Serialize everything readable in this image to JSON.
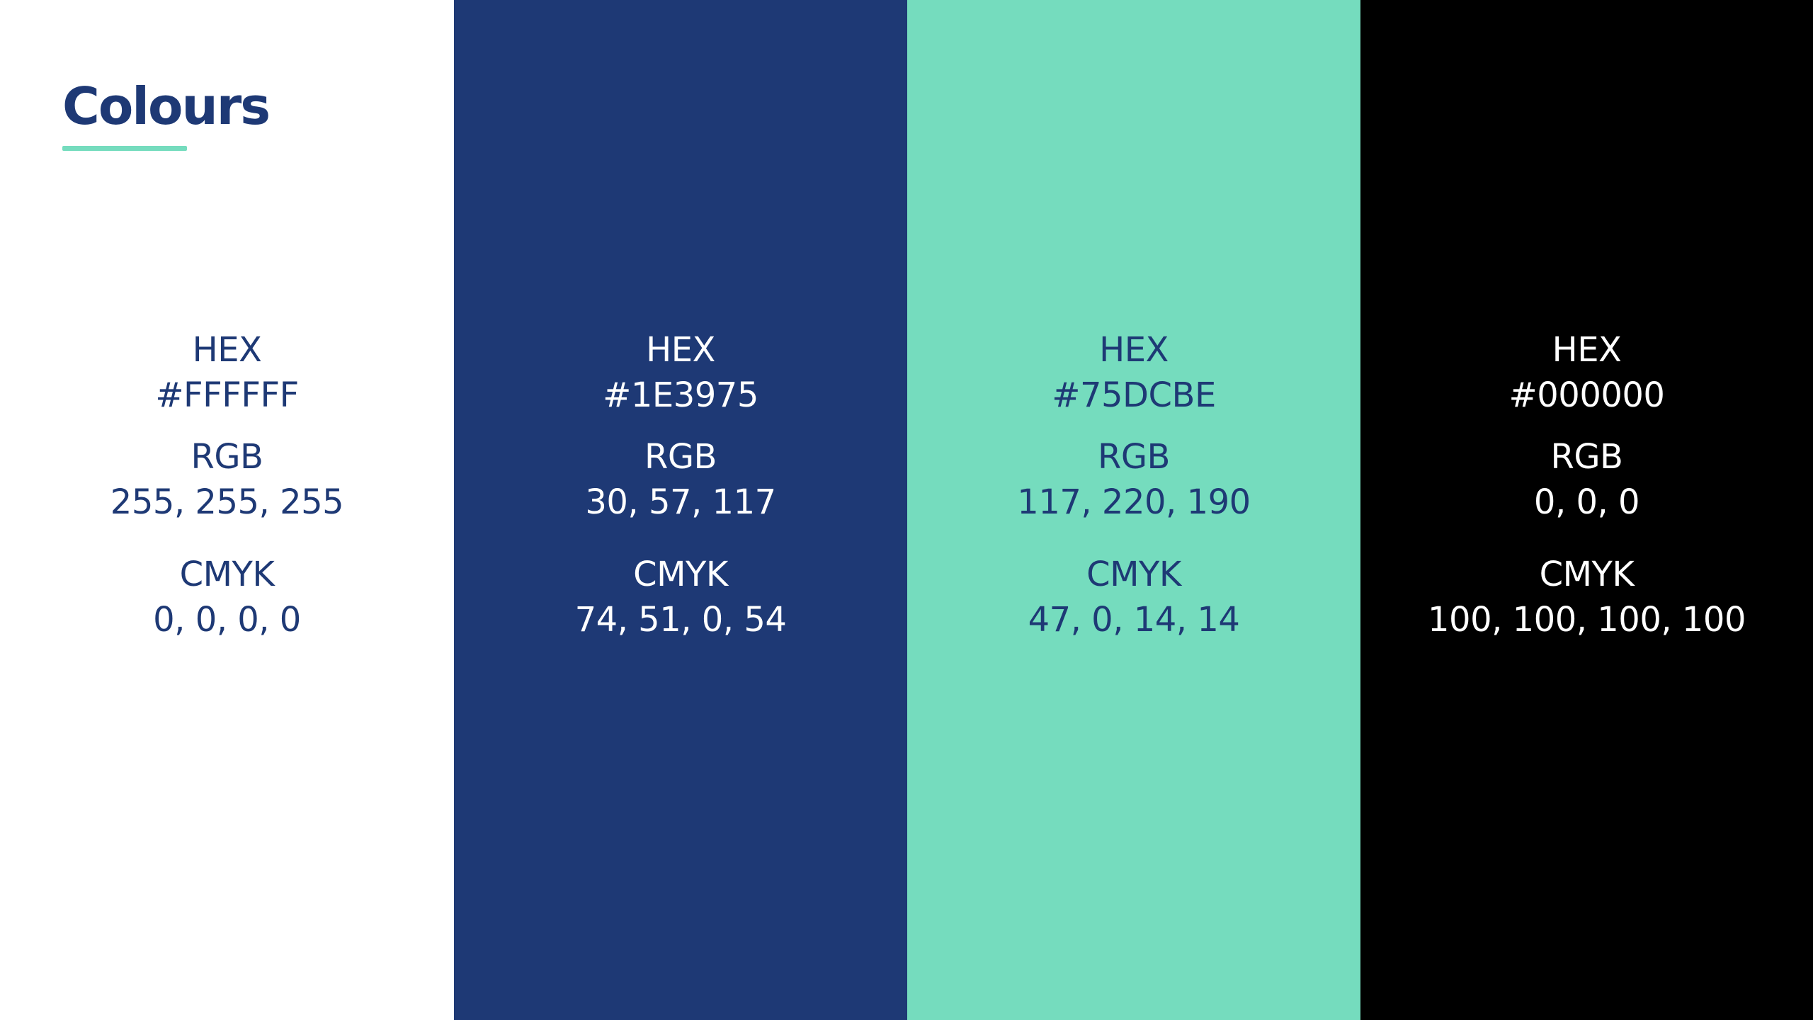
{
  "title": "Colours",
  "colors": {
    "title_text": "#1E3975",
    "accent": "#75DCBE"
  },
  "swatches": [
    {
      "background": "#FFFFFF",
      "text_color": "#1E3975",
      "hex_label": "HEX",
      "hex_value": "#FFFFFF",
      "rgb_label": "RGB",
      "rgb_value": "255, 255, 255",
      "cmyk_label": "CMYK",
      "cmyk_value": "0, 0, 0, 0"
    },
    {
      "background": "#1E3975",
      "text_color": "#FFFFFF",
      "hex_label": "HEX",
      "hex_value": "#1E3975",
      "rgb_label": "RGB",
      "rgb_value": "30, 57, 117",
      "cmyk_label": "CMYK",
      "cmyk_value": "74, 51, 0, 54"
    },
    {
      "background": "#75DCBE",
      "text_color": "#1E3975",
      "hex_label": "HEX",
      "hex_value": "#75DCBE",
      "rgb_label": "RGB",
      "rgb_value": "117, 220, 190",
      "cmyk_label": "CMYK",
      "cmyk_value": "47, 0, 14, 14"
    },
    {
      "background": "#000000",
      "text_color": "#FFFFFF",
      "hex_label": "HEX",
      "hex_value": "#000000",
      "rgb_label": "RGB",
      "rgb_value": "0, 0, 0",
      "cmyk_label": "CMYK",
      "cmyk_value": "100, 100, 100, 100"
    }
  ]
}
